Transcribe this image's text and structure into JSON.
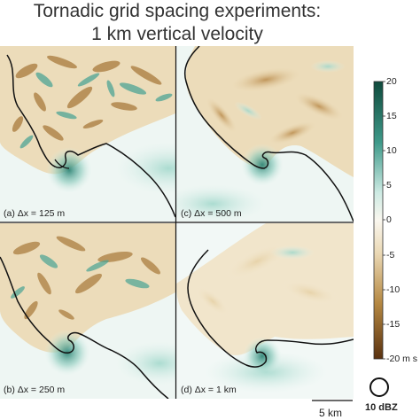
{
  "title": {
    "line1": "Tornadic grid spacing experiments:",
    "line2": "1 km vertical velocity"
  },
  "panels": [
    {
      "label": "(a) Δx = 125 m"
    },
    {
      "label": "(b) Δx = 250 m"
    },
    {
      "label": "(c) Δx = 500 m"
    },
    {
      "label": "(d) Δx = 1 km"
    }
  ],
  "colorbar": {
    "ticks": [
      "20",
      "15",
      "10",
      "5",
      "0",
      "-5",
      "-10",
      "-15",
      "-20 m s"
    ],
    "colors": {
      "top": "#0f4a3c",
      "upper": "#3f9a8a",
      "light": "#cdeae3",
      "middle": "#faf7ef",
      "lightneg": "#ead8b4",
      "lower": "#b58842",
      "bottom": "#5a3210"
    }
  },
  "scale_bar": {
    "label": "5 km"
  },
  "reflectivity_legend": {
    "label": "10 dBZ"
  }
}
